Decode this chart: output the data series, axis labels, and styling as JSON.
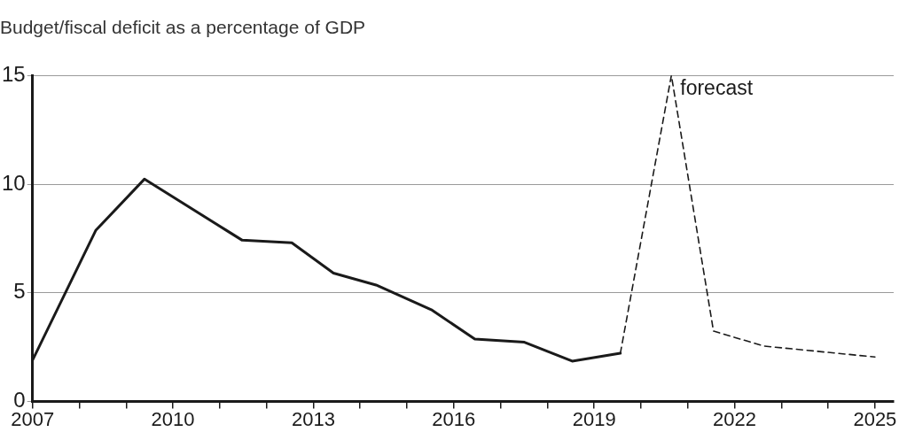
{
  "chart_data": {
    "type": "line",
    "title": "Budget/fiscal deficit as a percentage of GDP",
    "series": [
      {
        "color": "#1a1a1a",
        "line_style": "solid",
        "x": [
          2007,
          2008.35,
          2009.39,
          2011.48,
          2012.54,
          2013.43,
          2014.34,
          2015.54,
          2016.45,
          2017.51,
          2018.53,
          2019.56
        ],
        "values": [
          1.9,
          7.87,
          10.23,
          7.42,
          7.3,
          5.91,
          5.36,
          4.2,
          2.87,
          2.73,
          1.86,
          2.22
        ]
      },
      {
        "color": "#1a1a1a",
        "line_style": "dashed",
        "x": [
          2019.56,
          2020.65,
          2021.55,
          2022.63,
          2025
        ],
        "values": [
          2.22,
          15,
          3.24,
          2.55,
          2.05
        ]
      }
    ],
    "annotations": [
      {
        "text": "forecast",
        "x": 2020.65,
        "y": 15
      }
    ],
    "xlim": [
      2007,
      2025.4
    ],
    "xticks": [
      2007,
      {
        "value": 2008,
        "label": null
      },
      {
        "value": 2009,
        "label": null
      },
      2010,
      {
        "value": 2011,
        "label": null
      },
      {
        "value": 2012,
        "label": null
      },
      2013,
      {
        "value": 2014,
        "label": null
      },
      {
        "value": 2015,
        "label": null
      },
      2016,
      {
        "value": 2017,
        "label": null
      },
      {
        "value": 2018,
        "label": null
      },
      2019,
      {
        "value": 2020,
        "label": null
      },
      {
        "value": 2021,
        "label": null
      },
      2022,
      {
        "value": 2023,
        "label": null
      },
      {
        "value": 2024,
        "label": null
      },
      2025
    ],
    "ylim": [
      0,
      15
    ],
    "yticks": [
      0,
      5,
      10,
      15
    ],
    "grid": "y",
    "legend": false,
    "marker": "none"
  }
}
